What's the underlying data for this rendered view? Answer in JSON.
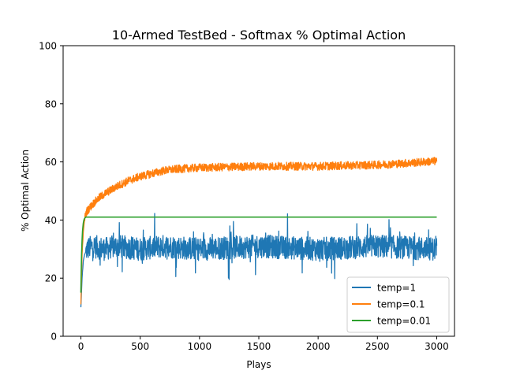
{
  "chart_data": {
    "type": "line",
    "title": "10-Armed TestBed - Softmax % Optimal Action",
    "xlabel": "Plays",
    "ylabel": "% Optimal Action",
    "xlim": [
      -150,
      3150
    ],
    "ylim": [
      0,
      100
    ],
    "xticks": [
      "0",
      "500",
      "1000",
      "1500",
      "2000",
      "2500",
      "3000"
    ],
    "yticks": [
      "0",
      "20",
      "40",
      "60",
      "80",
      "100"
    ],
    "grid": false,
    "legend_position": "lower-right",
    "series": [
      {
        "name": "temp=1",
        "color": "#1f77b4",
        "x": [
          0,
          10,
          20,
          30,
          40,
          50,
          100,
          200,
          300,
          500,
          700,
          1000,
          1500,
          2000,
          2500,
          3000
        ],
        "y": [
          10,
          20,
          26,
          28,
          29,
          30,
          31,
          30,
          31,
          30,
          31,
          30,
          31,
          30,
          31,
          30
        ],
        "noise_band": [
          20,
          42
        ]
      },
      {
        "name": "temp=0.1",
        "color": "#ff7f0e",
        "x": [
          0,
          10,
          20,
          30,
          40,
          50,
          100,
          150,
          200,
          300,
          400,
          500,
          600,
          700,
          800,
          1000,
          1200,
          1500,
          2000,
          2500,
          2800,
          3000
        ],
        "y": [
          11,
          28,
          36,
          40,
          42,
          43,
          45.5,
          47.5,
          49,
          51.5,
          53.5,
          55,
          56,
          57,
          57.5,
          58,
          58.2,
          58.5,
          58.5,
          59,
          59.7,
          60.3
        ]
      },
      {
        "name": "temp=0.01",
        "color": "#2ca02c",
        "x": [
          0,
          5,
          10,
          15,
          20,
          25,
          30,
          40,
          50,
          100,
          3000
        ],
        "y": [
          15,
          27,
          33,
          37,
          39,
          40,
          40.5,
          41,
          41,
          41,
          41
        ]
      }
    ]
  }
}
